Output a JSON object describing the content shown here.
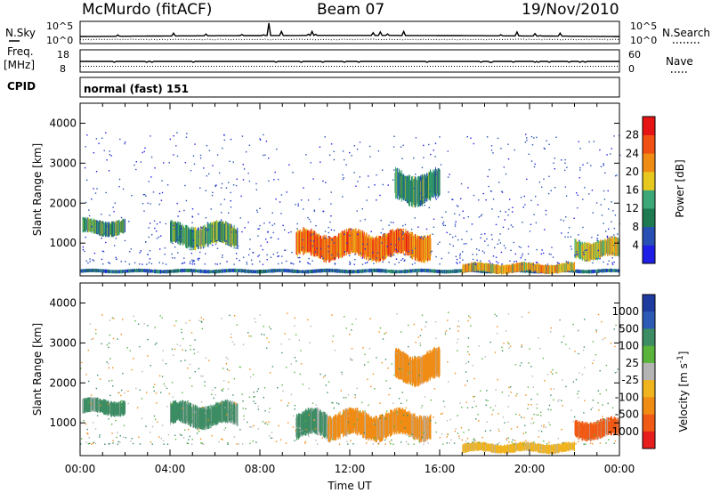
{
  "header": {
    "station": "McMurdo (fitACF)",
    "beam": "Beam 07",
    "date": "19/Nov/2010"
  },
  "strips": {
    "nsky_label": "N.Sky",
    "nsky_ticks": [
      "10^5",
      "10^0"
    ],
    "nsearch_label": "N.Search",
    "nsearch_ticks": [
      "10^5",
      "10^0"
    ],
    "freq_label": "Freq.",
    "freq_unit": "[MHz]",
    "freq_ticks": [
      "18",
      "8"
    ],
    "nave_label": "Nave",
    "nave_ticks": [
      "60",
      "0"
    ],
    "cpid_label": "CPID",
    "cpid_value": "normal (fast) 151"
  },
  "colors": {
    "power": [
      "#1e1ee6",
      "#2850b4",
      "#1e7a50",
      "#3ca878",
      "#e6c81e",
      "#f08c14",
      "#f05014",
      "#e61414"
    ],
    "velocity": [
      "#1e3ca0",
      "#2c5ab4",
      "#3c8c64",
      "#5ab43c",
      "#b4b4b4",
      "#f0b41e",
      "#f08c14",
      "#f05a14",
      "#e61e1e"
    ]
  },
  "chart_data": [
    {
      "type": "heatmap",
      "title": "",
      "xlabel": "Time UT",
      "ylabel": "Slant Range [km]",
      "x_ticks": [
        "00:00",
        "04:00",
        "08:00",
        "12:00",
        "16:00",
        "20:00",
        "00:00"
      ],
      "xlim_hours": [
        0,
        24
      ],
      "ylim_km": [
        180,
        4500
      ],
      "y_ticks": [
        1000,
        2000,
        3000,
        4000
      ],
      "colorbar": {
        "label": "Power [dB]",
        "ticks": [
          "4",
          "8",
          "12",
          "16",
          "20",
          "24",
          "28"
        ],
        "range": [
          0,
          30
        ]
      },
      "features": [
        {
          "name": "ground scatter band",
          "t_start": 0.0,
          "t_end": 24.0,
          "range_km": [
            250,
            350
          ],
          "power_db": 6
        },
        {
          "name": "arc 00-02",
          "t_start": 0.1,
          "t_end": 2.0,
          "range_km": [
            1200,
            1600
          ],
          "power_db": 10
        },
        {
          "name": "arc 04-07",
          "t_start": 4.0,
          "t_end": 7.0,
          "range_km": [
            900,
            1500
          ],
          "power_db": 11
        },
        {
          "name": "main echo 09:30-15:30",
          "t_start": 9.6,
          "t_end": 15.6,
          "range_km": [
            600,
            1300
          ],
          "power_db": 22
        },
        {
          "name": "high range patch",
          "t_start": 14.0,
          "t_end": 16.0,
          "range_km": [
            2000,
            2800
          ],
          "power_db": 9
        },
        {
          "name": "rising near-range 17-22",
          "t_start": 17.0,
          "t_end": 22.0,
          "range_km": [
            250,
            500
          ],
          "power_db": 18
        },
        {
          "name": "late echo 22-24",
          "t_start": 22.0,
          "t_end": 24.0,
          "range_km": [
            600,
            1100
          ],
          "power_db": 16
        }
      ]
    },
    {
      "type": "heatmap",
      "title": "",
      "xlabel": "Time UT",
      "ylabel": "Slant Range [km]",
      "x_ticks": [
        "00:00",
        "04:00",
        "08:00",
        "12:00",
        "16:00",
        "20:00",
        "00:00"
      ],
      "xlim_hours": [
        0,
        24
      ],
      "ylim_km": [
        180,
        4500
      ],
      "y_ticks": [
        1000,
        2000,
        3000,
        4000
      ],
      "colorbar": {
        "label": "Velocity [m s^-1]",
        "ticks": [
          "1000",
          "500",
          "100",
          "25",
          "-25",
          "-100",
          "-500",
          "-1000"
        ]
      },
      "features": [
        {
          "name": "arc 00-02",
          "t_start": 0.1,
          "t_end": 2.0,
          "range_km": [
            1200,
            1600
          ],
          "velocity": 200
        },
        {
          "name": "arc 04-07",
          "t_start": 4.0,
          "t_end": 7.0,
          "range_km": [
            900,
            1500
          ],
          "velocity": 300
        },
        {
          "name": "main echo early",
          "t_start": 9.6,
          "t_end": 11.0,
          "range_km": [
            600,
            1300
          ],
          "velocity": 150
        },
        {
          "name": "main echo late",
          "t_start": 11.0,
          "t_end": 15.6,
          "range_km": [
            600,
            1300
          ],
          "velocity": -200
        },
        {
          "name": "high range patch",
          "t_start": 14.0,
          "t_end": 16.0,
          "range_km": [
            2000,
            2800
          ],
          "velocity": -150
        },
        {
          "name": "near-range 17-22",
          "t_start": 17.0,
          "t_end": 22.0,
          "range_km": [
            250,
            500
          ],
          "velocity": -50
        },
        {
          "name": "late echo 22-24",
          "t_start": 22.0,
          "t_end": 24.0,
          "range_km": [
            600,
            1100
          ],
          "velocity": -800
        }
      ]
    }
  ]
}
